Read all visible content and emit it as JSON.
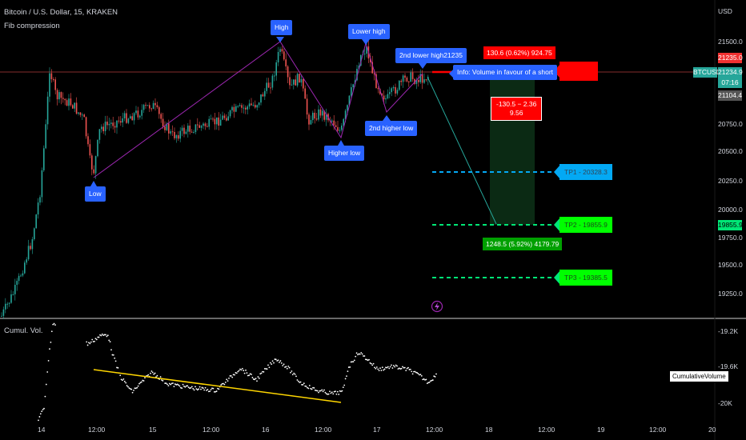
{
  "header": {
    "symbol_title": "Bitcoin / U.S. Dollar, 15, KRAKEN",
    "indicator": "Fib compression"
  },
  "price_axis": {
    "currency": "USD",
    "ticks": [
      "21500.0",
      "21250.0",
      "20750.0",
      "20500.0",
      "20250.0",
      "20000.0",
      "19750.0",
      "19500.0",
      "19250.0"
    ],
    "labels": {
      "level_high": "21235.0",
      "symbol": "BTCUSD",
      "last_price": "21234.9",
      "countdown": "07:16",
      "level_low": "21104.4",
      "tp2_level": "19855.9"
    }
  },
  "time_axis": {
    "ticks": [
      "14",
      "12:00",
      "15",
      "12:00",
      "16",
      "12:00",
      "17",
      "12:00",
      "18",
      "12:00",
      "19",
      "12:00",
      "20"
    ]
  },
  "annotations": {
    "low": "Low",
    "high": "High",
    "higher_low": "Higher low",
    "lower_high": "Lower high",
    "second_higher_low": "2nd higher low",
    "second_lower_high": "2nd lower high21235",
    "info": "Info: Volume in favour of a short"
  },
  "trade": {
    "risk_label": "130.6 (0.62%) 924.75",
    "pnl_line1": "-130.5 − 2.36",
    "pnl_line2": "9.56",
    "target_label": "1248.5 (5.92%) 4179.79",
    "tp1": "TP1 - 20328.3",
    "tp2": "TP2 - 19855.9",
    "tp3": "TP3 - 19385.5"
  },
  "volume_pane": {
    "title": "Cumul. Vol.",
    "ticks": [
      "-19.2K",
      "-19.6K",
      "-20K"
    ],
    "legend": "CumulativeVolume"
  },
  "colors": {
    "background": "#000000",
    "up": "#26a69a",
    "down": "#ef5350",
    "tag_blue": "#2962ff",
    "stop_red": "#ff0000",
    "target_green": "#00c800",
    "tp1_blue": "#03a9f4",
    "trend_yellow": "#ffd600",
    "zigzag": "#9c27b0"
  }
}
